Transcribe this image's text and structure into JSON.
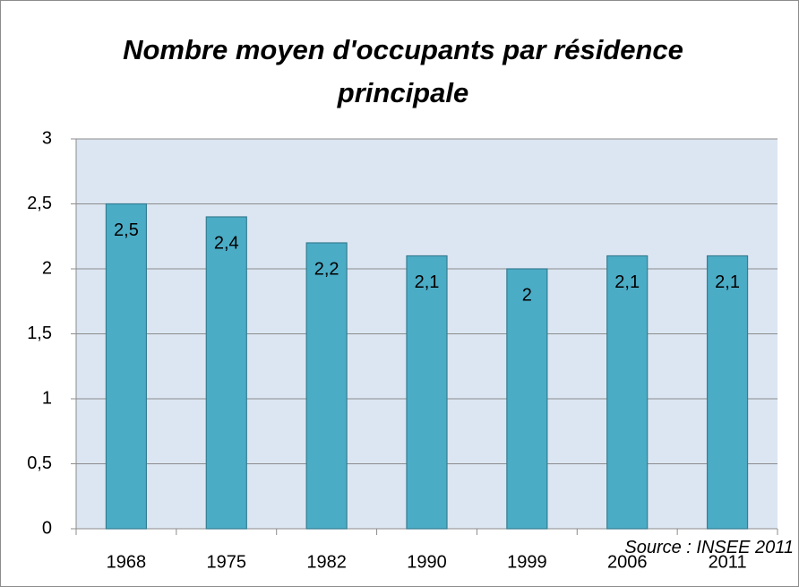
{
  "chart_data": {
    "type": "bar",
    "title": "Nombre moyen d'occupants par résidence principale",
    "annotation": "Source : INSEE 2011",
    "categories": [
      "1968",
      "1975",
      "1982",
      "1990",
      "1999",
      "2006",
      "2011"
    ],
    "values": [
      2.5,
      2.4,
      2.2,
      2.1,
      2,
      2.1,
      2.1
    ],
    "value_labels": [
      "2,5",
      "2,4",
      "2,2",
      "2,1",
      "2",
      "2,1",
      "2,1"
    ],
    "color": "#4bacc6",
    "ylim": [
      0,
      3
    ],
    "yticks": [
      0,
      {
        "value": 0.5,
        "label": "0,5"
      },
      1,
      {
        "value": 1.5,
        "label": "1,5"
      },
      2,
      {
        "value": 2.5,
        "label": "2,5"
      },
      3
    ],
    "grid": true
  }
}
